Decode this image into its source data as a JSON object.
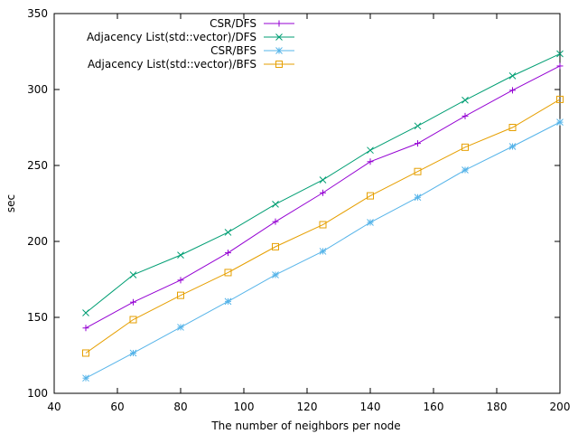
{
  "chart_data": {
    "type": "line",
    "title": "",
    "xlabel": "The number of neighbors per node",
    "ylabel": "sec",
    "xlim": [
      40,
      200
    ],
    "ylim": [
      100,
      350
    ],
    "xticks": [
      40,
      60,
      80,
      100,
      120,
      140,
      160,
      180,
      200
    ],
    "yticks": [
      100,
      150,
      200,
      250,
      300,
      350
    ],
    "grid": false,
    "legend_position": "top-left",
    "x": [
      50,
      65,
      80,
      95,
      110,
      125,
      140,
      155,
      170,
      185,
      200
    ],
    "series": [
      {
        "name": "CSR/DFS",
        "color": "#9400d3",
        "marker": "plus",
        "values": [
          143,
          160,
          174.5,
          192.5,
          213,
          232,
          252.5,
          264.5,
          282.5,
          299.5,
          315.5
        ]
      },
      {
        "name": "Adjacency List(std::vector)/DFS",
        "color": "#009e73",
        "marker": "cross",
        "values": [
          153,
          178,
          191,
          206,
          224.5,
          240.5,
          260,
          276,
          293,
          309,
          323.5
        ]
      },
      {
        "name": "CSR/BFS",
        "color": "#56b4e9",
        "marker": "star",
        "values": [
          110,
          126.5,
          143.5,
          160.5,
          178,
          193.5,
          212.5,
          229,
          247,
          262.5,
          278.5
        ]
      },
      {
        "name": "Adjacency List(std::vector)/BFS",
        "color": "#e69f00",
        "marker": "square",
        "values": [
          126.5,
          148.5,
          164.5,
          179.5,
          196.5,
          211,
          230,
          246,
          262,
          275,
          293.5
        ]
      }
    ]
  }
}
